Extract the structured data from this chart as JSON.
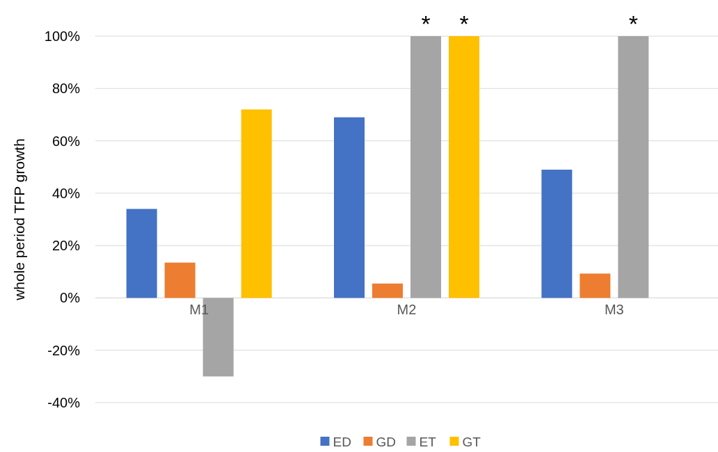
{
  "chart_data": {
    "type": "bar",
    "ylabel": "whole period TFP growth",
    "categories": [
      "M1",
      "M2",
      "M3"
    ],
    "series": [
      {
        "name": "ED",
        "color": "#4472c4",
        "values": [
          34,
          69,
          49
        ]
      },
      {
        "name": "GD",
        "color": "#ed7d31",
        "values": [
          13.5,
          5.5,
          9.3
        ]
      },
      {
        "name": "ET",
        "color": "#a5a5a5",
        "values": [
          -30,
          100,
          100
        ]
      },
      {
        "name": "GT",
        "color": "#ffc000",
        "values": [
          72,
          100,
          null
        ]
      }
    ],
    "ylim": [
      -40,
      100
    ],
    "yticks": [
      {
        "value": -40,
        "label": "-40%"
      },
      {
        "value": -20,
        "label": "-20%"
      },
      {
        "value": 0,
        "label": "0%"
      },
      {
        "value": 20,
        "label": "20%"
      },
      {
        "value": 40,
        "label": "40%"
      },
      {
        "value": 60,
        "label": "60%"
      },
      {
        "value": 80,
        "label": "80%"
      },
      {
        "value": 100,
        "label": "100%"
      }
    ],
    "grid": "y",
    "legend": "bottom",
    "annotations": [
      "*",
      "*",
      "*"
    ]
  }
}
